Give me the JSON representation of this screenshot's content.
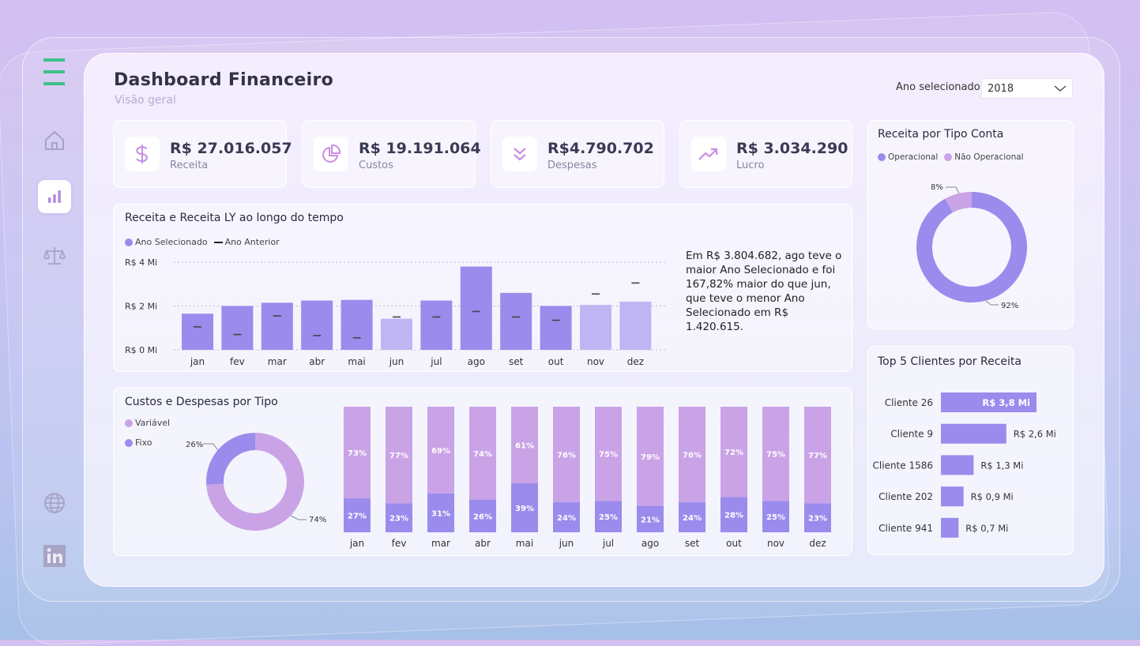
{
  "header": {
    "title": "Dashboard Financeiro",
    "subtitle": "Visão geral",
    "year_label": "Ano selecionado",
    "year_value": "2018"
  },
  "nav": [
    {
      "name": "menu-icon",
      "active": false
    },
    {
      "name": "home-icon",
      "active": false
    },
    {
      "name": "bar-chart-icon",
      "active": true
    },
    {
      "name": "scale-icon",
      "active": false
    },
    {
      "name": "globe-icon",
      "active": false
    },
    {
      "name": "linkedin-icon",
      "active": false
    }
  ],
  "kpis": [
    {
      "value": "R$ 27.016.057",
      "label": "Receita",
      "icon": "dollar-icon"
    },
    {
      "value": "R$ 19.191.064",
      "label": "Custos",
      "icon": "pie-icon"
    },
    {
      "value": "R$4.790.702",
      "label": "Despesas",
      "icon": "double-chevron-down-icon"
    },
    {
      "value": "R$ 3.034.290",
      "label": "Lucro",
      "icon": "trend-up-icon"
    }
  ],
  "revenue": {
    "title": "Receita e Receita LY ao longo do tempo",
    "legend_current": "Ano Selecionado",
    "legend_previous": "Ano Anterior",
    "insight": "Em R$ 3.804.682, ago teve o maior Ano Selecionado e foi 167,82% maior do que jun, que teve o menor Ano Selecionado em R$ 1.420.615."
  },
  "costs": {
    "title": "Custos e Despesas por Tipo",
    "legend_variable": "Variável",
    "legend_fixed": "Fixo",
    "donut_fixed_label": "26%",
    "donut_variable_label": "74%"
  },
  "account_type": {
    "title": "Receita por Tipo Conta",
    "legend_op": "Operacional",
    "legend_nonop": "Não Operacional",
    "nonop_label": "8%",
    "op_label": "92%"
  },
  "top_clients": {
    "title": "Top 5 Clientes por Receita"
  },
  "colors": {
    "purple": "#9b8bec",
    "light_purple": "#c0b5f3",
    "lilac": "#c9a3e6",
    "green": "#3fc08a"
  },
  "chart_data": [
    {
      "type": "bar",
      "title": "Receita e Receita LY ao longo do tempo",
      "categories": [
        "jan",
        "fev",
        "mar",
        "abr",
        "mai",
        "jun",
        "jul",
        "ago",
        "set",
        "out",
        "nov",
        "dez"
      ],
      "y_ticks": [
        "R$ 0 Mi",
        "R$ 2 Mi",
        "R$ 4 Mi"
      ],
      "ylim": [
        0,
        4
      ],
      "series": [
        {
          "name": "Ano Selecionado",
          "values": [
            1.65,
            2.0,
            2.15,
            2.25,
            2.28,
            1.42,
            2.25,
            3.8,
            2.6,
            2.0,
            2.05,
            2.2
          ],
          "highlight": [
            false,
            false,
            false,
            false,
            false,
            true,
            false,
            false,
            false,
            false,
            true,
            true
          ]
        },
        {
          "name": "Ano Anterior",
          "values": [
            1.05,
            0.7,
            1.55,
            0.65,
            0.55,
            1.5,
            1.5,
            1.75,
            1.5,
            1.35,
            2.55,
            3.05
          ]
        }
      ]
    },
    {
      "type": "pie",
      "title": "Custos e Despesas por Tipo",
      "series": [
        {
          "name": "Fixo",
          "values": [
            26
          ]
        },
        {
          "name": "Variável",
          "values": [
            74
          ]
        }
      ]
    },
    {
      "type": "bar",
      "stacked": true,
      "categories": [
        "jan",
        "fev",
        "mar",
        "abr",
        "mai",
        "jun",
        "jul",
        "ago",
        "set",
        "out",
        "nov",
        "dez"
      ],
      "series": [
        {
          "name": "Variável",
          "values": [
            73,
            77,
            69,
            74,
            61,
            76,
            75,
            79,
            76,
            72,
            75,
            77
          ]
        },
        {
          "name": "Fixo",
          "values": [
            27,
            23,
            31,
            26,
            39,
            24,
            25,
            21,
            24,
            28,
            25,
            23
          ]
        }
      ]
    },
    {
      "type": "pie",
      "title": "Receita por Tipo Conta",
      "series": [
        {
          "name": "Operacional",
          "values": [
            92
          ]
        },
        {
          "name": "Não Operacional",
          "values": [
            8
          ]
        }
      ]
    },
    {
      "type": "bar",
      "title": "Top 5 Clientes por Receita",
      "categories": [
        "Cliente 26",
        "Cliente 9",
        "Cliente 1586",
        "Cliente 202",
        "Cliente 941"
      ],
      "values": [
        3.8,
        2.6,
        1.3,
        0.9,
        0.7
      ],
      "labels": [
        "R$ 3,8 Mi",
        "R$ 2,6 Mi",
        "R$ 1,3 Mi",
        "R$ 0,9 Mi",
        "R$ 0,7 Mi"
      ]
    }
  ]
}
